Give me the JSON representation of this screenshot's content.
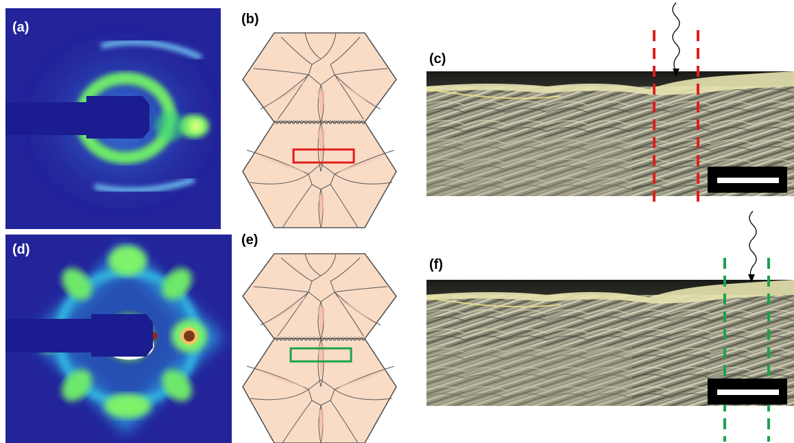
{
  "figure": {
    "panels": [
      {
        "label": "(a)",
        "type": "x-ray diffraction pattern"
      },
      {
        "label": "(b)",
        "type": "hexagonal scale schematic",
        "box_color": "#e11d1d"
      },
      {
        "label": "(c)",
        "type": "optical micrograph",
        "line_color": "#e11d1d"
      },
      {
        "label": "(d)",
        "type": "x-ray diffraction pattern"
      },
      {
        "label": "(e)",
        "type": "hexagonal scale schematic",
        "box_color": "#1aa34a"
      },
      {
        "label": "(f)",
        "type": "optical micrograph",
        "line_color": "#1aa34a"
      }
    ]
  },
  "colors": {
    "detector_bg": "#23249a",
    "scale_fill": "#f9dcc6",
    "scale_bar": "#ffffff",
    "scale_bar_bg": "#000000"
  }
}
